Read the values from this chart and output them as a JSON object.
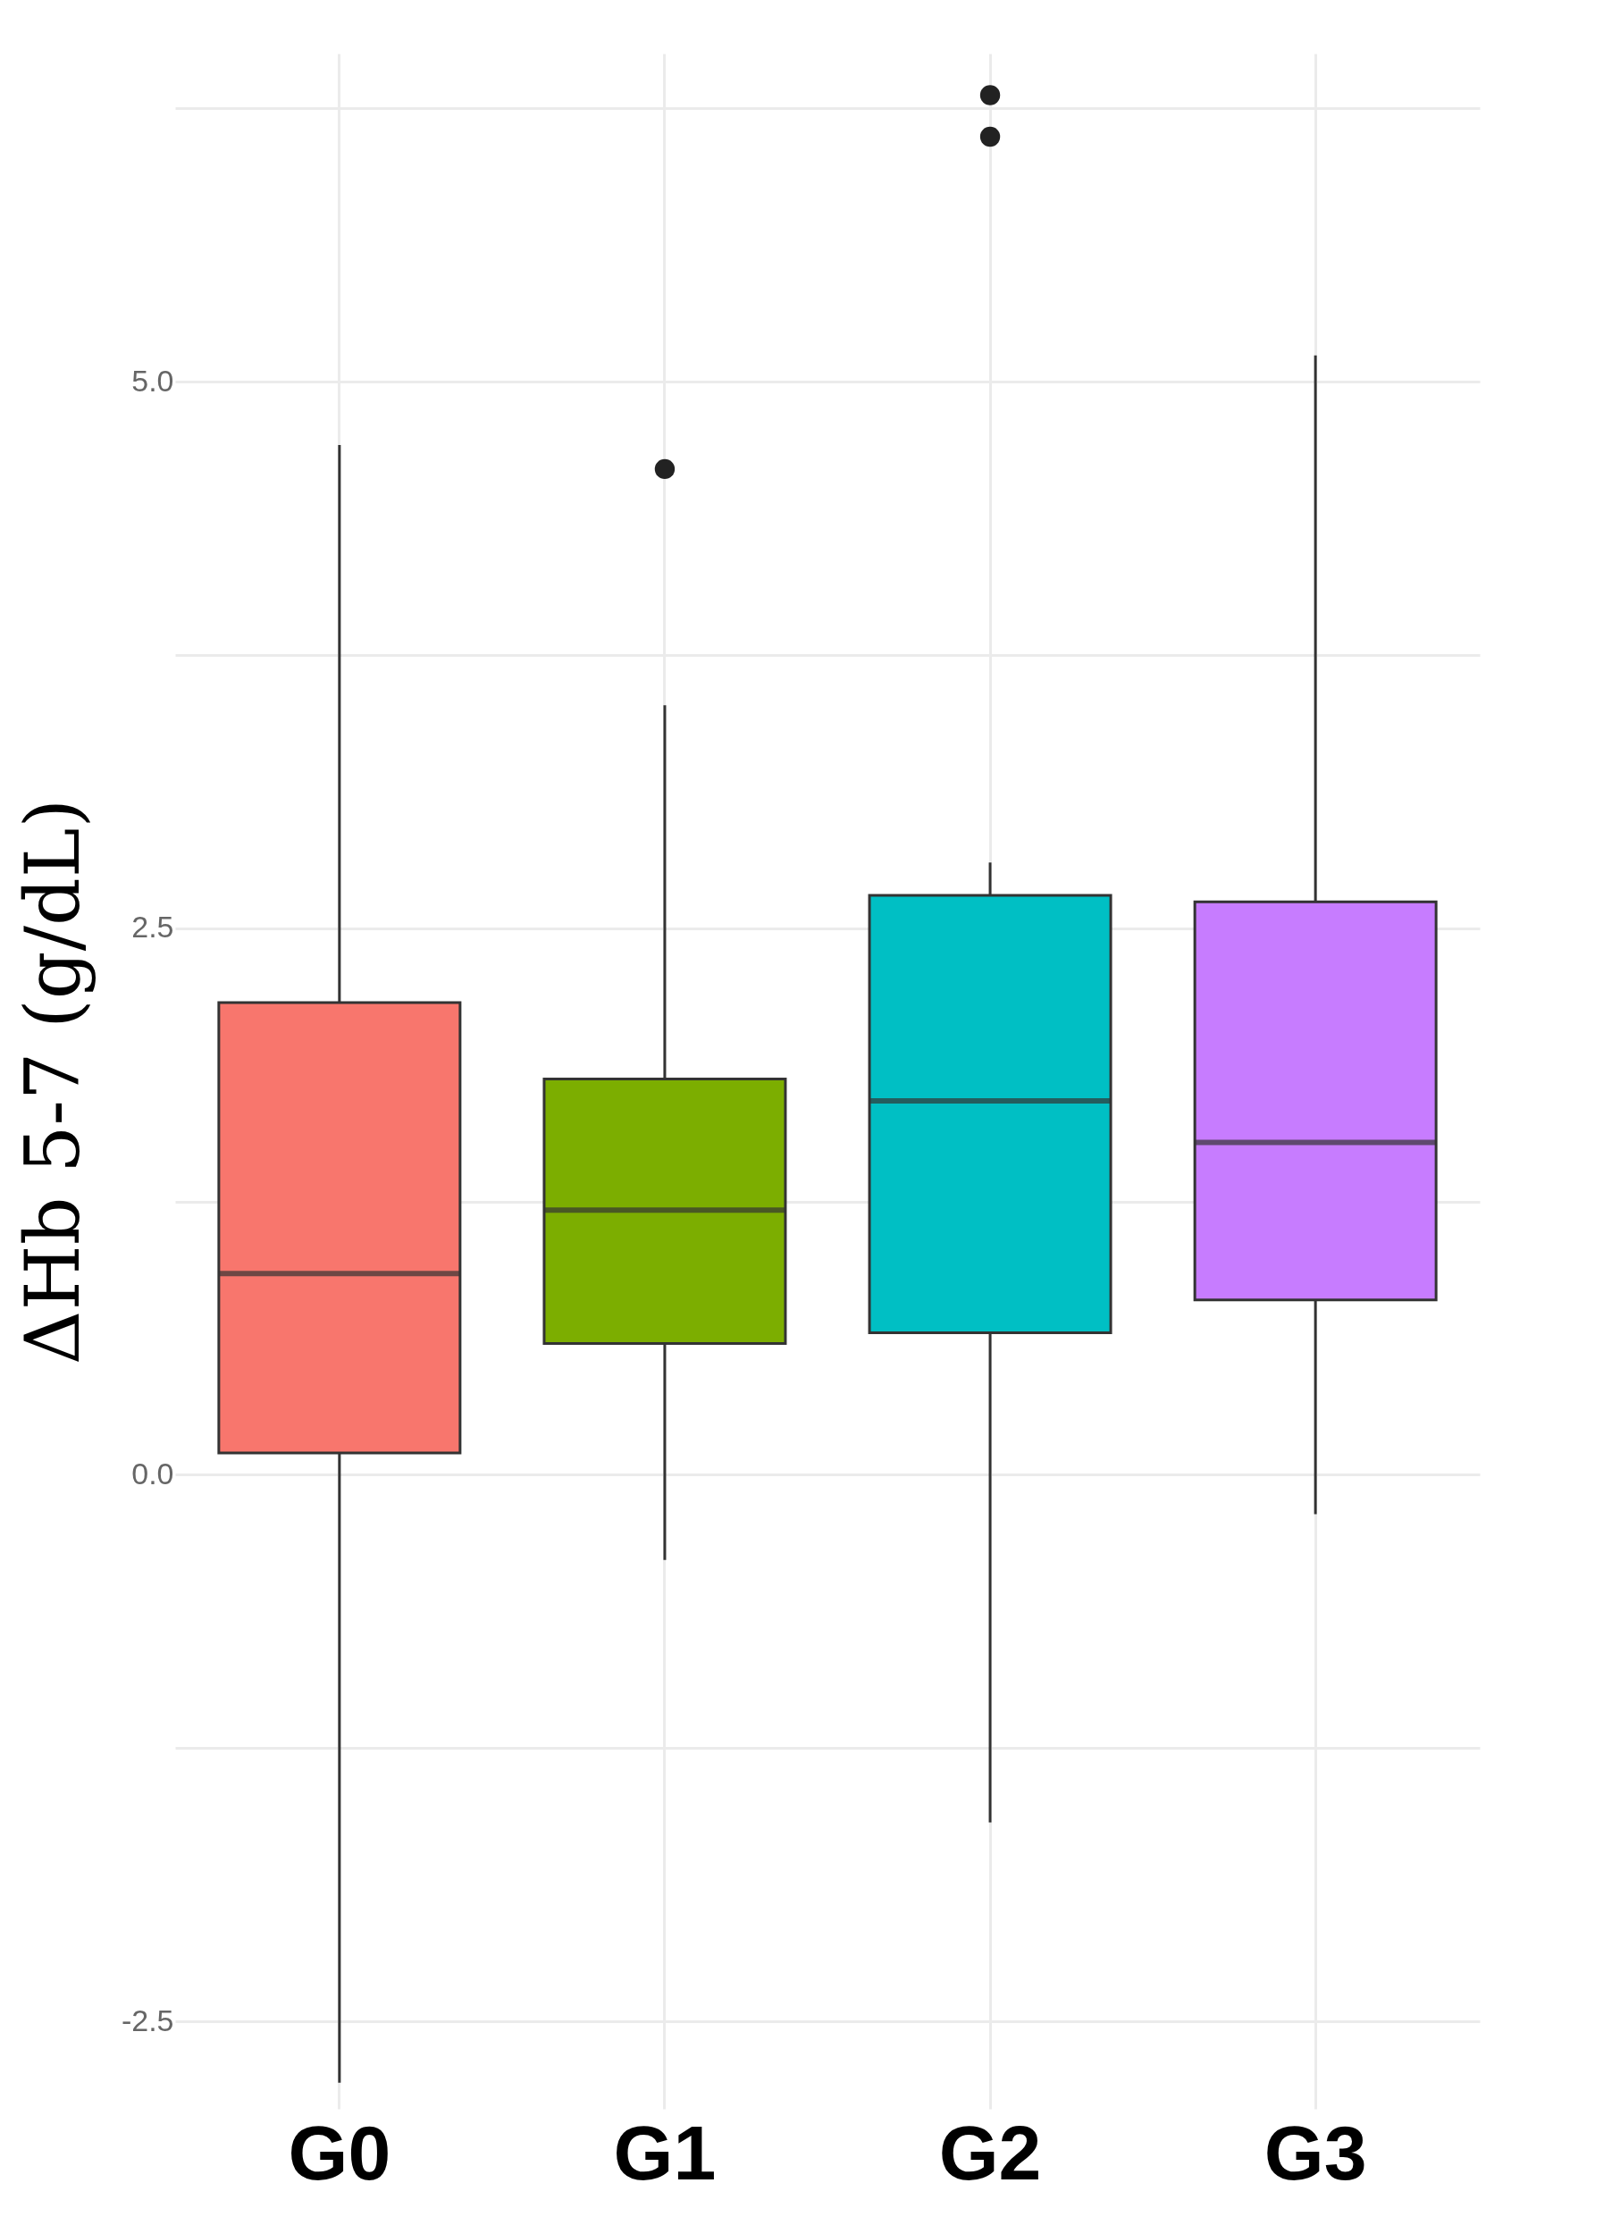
{
  "chart_data": {
    "type": "box",
    "ylabel": "ΔHb 5-7 (g/dL)",
    "categories": [
      "G0",
      "G1",
      "G2",
      "G3"
    ],
    "colors": [
      "#f8766d",
      "#7cae00",
      "#00bfc4",
      "#c77cff"
    ],
    "boxes": [
      {
        "low": -2.78,
        "q1": 0.1,
        "median": 0.92,
        "q3": 2.16,
        "high": 4.71
      },
      {
        "low": -0.39,
        "q1": 0.6,
        "median": 1.21,
        "q3": 1.81,
        "high": 3.52,
        "outliers": [
          4.6
        ]
      },
      {
        "low": -1.59,
        "q1": 0.65,
        "median": 1.71,
        "q3": 2.65,
        "high": 2.8,
        "outliers": [
          6.12,
          6.31
        ]
      },
      {
        "low": -0.18,
        "q1": 0.8,
        "median": 1.52,
        "q3": 2.62,
        "high": 5.12
      }
    ],
    "ylim": [
      -2.9,
      6.5
    ],
    "yticks": [
      {
        "value": -2.5,
        "label": "-2.5"
      },
      {
        "value": -1.25,
        "label": null
      },
      {
        "value": 0,
        "label": "0.0"
      },
      {
        "value": 1.25,
        "label": null
      },
      {
        "value": 2.5,
        "label": "2.5"
      },
      {
        "value": 3.75,
        "label": null
      },
      {
        "value": 5,
        "label": "5.0"
      },
      {
        "value": 6.25,
        "label": null
      }
    ],
    "grid": true
  }
}
